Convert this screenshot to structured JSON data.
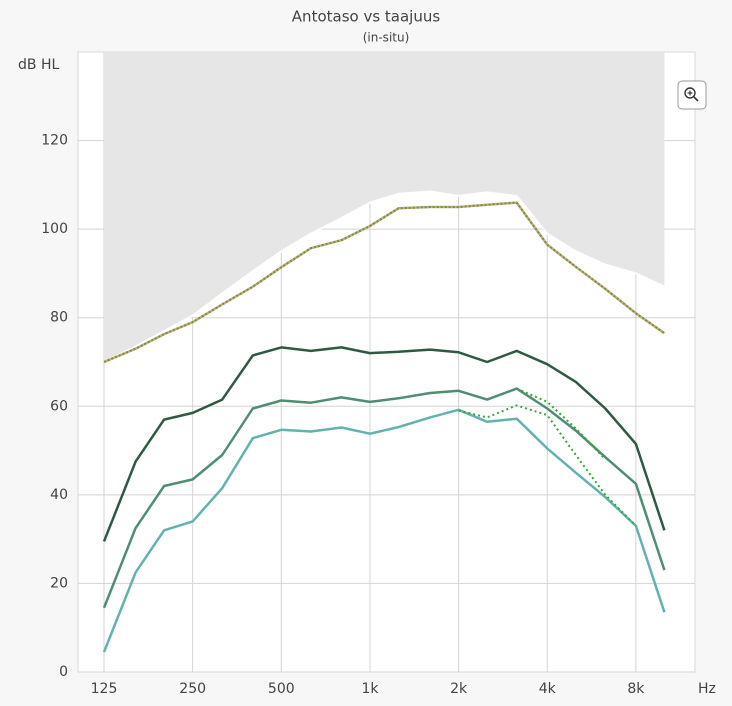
{
  "chart_data": {
    "type": "line",
    "title": "Antotaso vs taajuus",
    "subtitle": "(in-situ)",
    "y_label": "dB HL",
    "x_label": "Hz",
    "x_scale": "log",
    "grid": true,
    "x": [
      125,
      160,
      200,
      250,
      315,
      400,
      500,
      630,
      800,
      1000,
      1250,
      1600,
      2000,
      2500,
      3150,
      4000,
      5000,
      6300,
      8000,
      10000
    ],
    "xlim": [
      102,
      12700
    ],
    "ylim": [
      0,
      140
    ],
    "xticks": [
      125,
      250,
      500,
      {
        "value": 1000,
        "label": "1k"
      },
      {
        "value": 2000,
        "label": "2k"
      },
      {
        "value": 4000,
        "label": "4k"
      },
      {
        "value": 8000,
        "label": "8k"
      }
    ],
    "yticks": [
      0,
      20,
      40,
      60,
      80,
      100,
      120
    ],
    "series": [
      {
        "style": "area-above",
        "color": "#e6e6e6",
        "values": [
          70,
          73.5,
          77,
          80.5,
          85.5,
          90.5,
          95,
          99,
          102.5,
          106,
          108,
          108.5,
          107.5,
          108.3,
          107.5,
          99,
          95,
          92,
          90,
          87
        ]
      },
      {
        "style": "solid-dotted",
        "color": "#c8a890",
        "dot_color": "#6f9a2a",
        "values": [
          70,
          73,
          76.3,
          79,
          83,
          87,
          91.4,
          95.7,
          97.5,
          100.7,
          104.7,
          105,
          105,
          105.5,
          106,
          96.5,
          91.5,
          86.5,
          81,
          76.5
        ]
      },
      {
        "style": "solid",
        "color": "#2f5a42",
        "values": [
          29.5,
          47.5,
          57,
          58.5,
          61.5,
          71.5,
          73.3,
          72.5,
          73.3,
          72,
          72.3,
          72.8,
          72.2,
          70,
          72.5,
          69.5,
          65.5,
          59.5,
          51.5,
          32
        ]
      },
      {
        "style": "solid",
        "color": "#4e8e72",
        "values": [
          14.5,
          32.5,
          42,
          43.5,
          49,
          59.5,
          61.3,
          60.8,
          62,
          61,
          61.8,
          63,
          63.5,
          61.5,
          64,
          59.5,
          54.5,
          48.5,
          42.5,
          23
        ]
      },
      {
        "style": "solid",
        "color": "#62b3ad",
        "values": [
          4.5,
          22.5,
          32,
          34,
          41.5,
          52.8,
          54.7,
          54.3,
          55.2,
          53.8,
          55.3,
          57.5,
          59.2,
          56.5,
          57.2,
          50.5,
          45,
          39.5,
          33,
          13.5
        ]
      },
      {
        "style": "dotted",
        "color": "#3aa33a",
        "values": [
          null,
          null,
          null,
          null,
          null,
          null,
          null,
          null,
          null,
          null,
          null,
          null,
          null,
          null,
          64,
          61,
          55,
          48,
          null,
          null
        ]
      },
      {
        "style": "dotted",
        "color": "#3aa33a",
        "values": [
          null,
          null,
          null,
          null,
          null,
          null,
          null,
          null,
          null,
          null,
          null,
          null,
          59,
          57.5,
          60.2,
          58,
          49,
          40,
          33,
          null
        ]
      }
    ]
  }
}
